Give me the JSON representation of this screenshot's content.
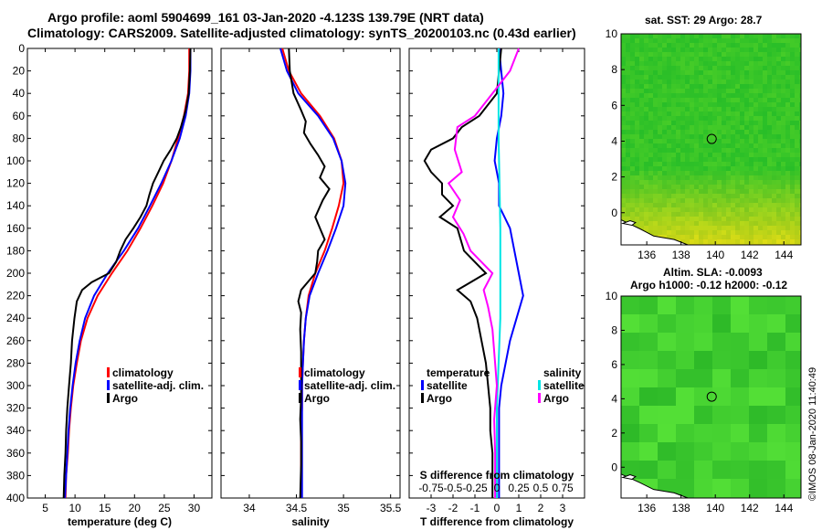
{
  "header": {
    "line1": "Argo profile: aoml 5904699_161 03-Jan-2020 -4.123S 139.79E (NRT data)",
    "line2": "Climatology: CARS2009. Satellite-adjusted climatology: synTS_20200103.nc (0.43d earlier)"
  },
  "watermark": "©IMOS 08-Jan-2020 11:40:49",
  "colors": {
    "argo": "#000000",
    "climatology": "#ff0000",
    "satellite_adj": "#0000ff",
    "salinity_satellite": "#00e5e5",
    "salinity_argo": "#ff00ff"
  },
  "chart_data": [
    {
      "id": "temperature",
      "type": "line",
      "xlabel": "temperature (deg C)",
      "ylabel": "depth",
      "xlim": [
        2,
        33
      ],
      "ylim": [
        400,
        0
      ],
      "xticks": [
        5,
        10,
        15,
        20,
        25,
        30
      ],
      "yticks": [
        0,
        20,
        40,
        60,
        80,
        100,
        120,
        140,
        160,
        180,
        200,
        220,
        240,
        260,
        280,
        300,
        320,
        340,
        360,
        380,
        400
      ],
      "legend": [
        "climatology",
        "satellite-adj. clim.",
        "Argo"
      ],
      "series": [
        {
          "name": "climatology",
          "color": "#ff0000",
          "points": [
            [
              29.2,
              0
            ],
            [
              29.2,
              20
            ],
            [
              29.0,
              40
            ],
            [
              28.3,
              60
            ],
            [
              27.3,
              80
            ],
            [
              26.2,
              100
            ],
            [
              24.8,
              120
            ],
            [
              23.0,
              140
            ],
            [
              21.0,
              160
            ],
            [
              18.8,
              180
            ],
            [
              16.2,
              200
            ],
            [
              13.8,
              220
            ],
            [
              12.1,
              240
            ],
            [
              11.0,
              260
            ],
            [
              10.3,
              280
            ],
            [
              9.7,
              300
            ],
            [
              9.3,
              320
            ],
            [
              9.0,
              340
            ],
            [
              8.8,
              360
            ],
            [
              8.5,
              380
            ],
            [
              8.4,
              400
            ]
          ]
        },
        {
          "name": "satellite-adj. clim.",
          "color": "#0000ff",
          "points": [
            [
              29.4,
              0
            ],
            [
              29.4,
              20
            ],
            [
              29.2,
              40
            ],
            [
              28.6,
              60
            ],
            [
              27.6,
              80
            ],
            [
              26.2,
              100
            ],
            [
              24.5,
              120
            ],
            [
              22.6,
              140
            ],
            [
              20.6,
              160
            ],
            [
              18.2,
              180
            ],
            [
              15.5,
              200
            ],
            [
              13.2,
              220
            ],
            [
              11.7,
              240
            ],
            [
              10.8,
              260
            ],
            [
              10.1,
              280
            ],
            [
              9.6,
              300
            ],
            [
              9.2,
              320
            ],
            [
              8.9,
              340
            ],
            [
              8.7,
              360
            ],
            [
              8.5,
              380
            ],
            [
              8.3,
              400
            ]
          ]
        },
        {
          "name": "Argo",
          "color": "#000000",
          "points": [
            [
              29.4,
              0
            ],
            [
              29.3,
              20
            ],
            [
              29.1,
              40
            ],
            [
              28.6,
              55
            ],
            [
              27.8,
              70
            ],
            [
              27.1,
              80
            ],
            [
              26.1,
              90
            ],
            [
              24.9,
              100
            ],
            [
              24.0,
              110
            ],
            [
              23.1,
              120
            ],
            [
              22.5,
              130
            ],
            [
              22.0,
              140
            ],
            [
              21.0,
              150
            ],
            [
              19.8,
              160
            ],
            [
              18.5,
              170
            ],
            [
              17.6,
              180
            ],
            [
              16.9,
              190
            ],
            [
              15.7,
              200
            ],
            [
              12.8,
              208
            ],
            [
              11.2,
              215
            ],
            [
              10.3,
              225
            ],
            [
              9.9,
              240
            ],
            [
              9.5,
              260
            ],
            [
              9.3,
              280
            ],
            [
              9.0,
              300
            ],
            [
              8.7,
              320
            ],
            [
              8.5,
              340
            ],
            [
              8.4,
              360
            ],
            [
              8.2,
              380
            ],
            [
              8.1,
              400
            ]
          ]
        }
      ]
    },
    {
      "id": "salinity",
      "type": "line",
      "xlabel": "salinity",
      "ylabel": "depth",
      "xlim": [
        33.7,
        35.6
      ],
      "ylim": [
        400,
        0
      ],
      "xticks": [
        34,
        34.5,
        35,
        35.5
      ],
      "legend": [
        "climatology",
        "satellite-adj. clim.",
        "Argo"
      ],
      "series": [
        {
          "name": "climatology",
          "color": "#ff0000",
          "points": [
            [
              34.35,
              0
            ],
            [
              34.42,
              20
            ],
            [
              34.55,
              40
            ],
            [
              34.75,
              60
            ],
            [
              34.9,
              80
            ],
            [
              34.98,
              100
            ],
            [
              35.0,
              120
            ],
            [
              34.95,
              140
            ],
            [
              34.88,
              160
            ],
            [
              34.8,
              180
            ],
            [
              34.7,
              200
            ],
            [
              34.63,
              220
            ],
            [
              34.6,
              240
            ],
            [
              34.58,
              260
            ],
            [
              34.57,
              280
            ],
            [
              34.56,
              300
            ],
            [
              34.56,
              320
            ],
            [
              34.55,
              340
            ],
            [
              34.55,
              360
            ],
            [
              34.55,
              380
            ],
            [
              34.55,
              400
            ]
          ]
        },
        {
          "name": "satellite-adj. clim.",
          "color": "#0000ff",
          "points": [
            [
              34.33,
              0
            ],
            [
              34.4,
              20
            ],
            [
              34.52,
              40
            ],
            [
              34.73,
              60
            ],
            [
              34.89,
              80
            ],
            [
              34.98,
              100
            ],
            [
              35.02,
              120
            ],
            [
              35.0,
              140
            ],
            [
              34.92,
              160
            ],
            [
              34.83,
              180
            ],
            [
              34.73,
              200
            ],
            [
              34.64,
              220
            ],
            [
              34.6,
              240
            ],
            [
              34.58,
              260
            ],
            [
              34.57,
              280
            ],
            [
              34.56,
              300
            ],
            [
              34.56,
              320
            ],
            [
              34.56,
              340
            ],
            [
              34.56,
              360
            ],
            [
              34.56,
              380
            ],
            [
              34.56,
              400
            ]
          ]
        },
        {
          "name": "Argo",
          "color": "#000000",
          "points": [
            [
              34.42,
              0
            ],
            [
              34.43,
              20
            ],
            [
              34.47,
              40
            ],
            [
              34.55,
              55
            ],
            [
              34.6,
              65
            ],
            [
              34.58,
              75
            ],
            [
              34.65,
              85
            ],
            [
              34.73,
              95
            ],
            [
              34.8,
              105
            ],
            [
              34.75,
              115
            ],
            [
              34.85,
              125
            ],
            [
              34.78,
              135
            ],
            [
              34.7,
              150
            ],
            [
              34.75,
              160
            ],
            [
              34.8,
              170
            ],
            [
              34.73,
              180
            ],
            [
              34.72,
              190
            ],
            [
              34.7,
              200
            ],
            [
              34.55,
              215
            ],
            [
              34.52,
              225
            ],
            [
              34.55,
              235
            ],
            [
              34.54,
              250
            ],
            [
              34.55,
              270
            ],
            [
              34.55,
              290
            ],
            [
              34.55,
              310
            ],
            [
              34.54,
              330
            ],
            [
              34.55,
              350
            ],
            [
              34.55,
              370
            ],
            [
              34.54,
              400
            ]
          ]
        }
      ]
    },
    {
      "id": "difference",
      "type": "line",
      "xlabel": "T difference from climatology",
      "x2label": "S difference from climatology",
      "ylabel": "depth",
      "xlim": [
        -4,
        4
      ],
      "ylim": [
        400,
        0
      ],
      "xticks": [
        -3,
        -2,
        -1,
        0,
        1,
        2,
        3
      ],
      "x2lim": [
        -1,
        1
      ],
      "x2ticks": [
        -0.75,
        -0.5,
        -0.25,
        0,
        0.25,
        0.5,
        0.75
      ],
      "legend_temperature": [
        "temperature",
        "satellite",
        "Argo"
      ],
      "legend_salinity": [
        "salinity",
        "satellite",
        "Argo"
      ],
      "series": [
        {
          "name": "T satellite",
          "axis": "T",
          "color": "#0000ff",
          "points": [
            [
              0.1,
              0
            ],
            [
              0.2,
              20
            ],
            [
              0.3,
              40
            ],
            [
              0.2,
              60
            ],
            [
              0.0,
              80
            ],
            [
              -0.1,
              100
            ],
            [
              0.1,
              120
            ],
            [
              0.1,
              140
            ],
            [
              0.6,
              160
            ],
            [
              0.8,
              180
            ],
            [
              1.0,
              200
            ],
            [
              1.2,
              220
            ],
            [
              0.9,
              240
            ],
            [
              0.6,
              260
            ],
            [
              0.4,
              280
            ],
            [
              0.2,
              300
            ],
            [
              0.1,
              320
            ],
            [
              0.1,
              340
            ],
            [
              0.1,
              360
            ],
            [
              0.1,
              380
            ],
            [
              0.1,
              400
            ]
          ]
        },
        {
          "name": "T Argo",
          "axis": "T",
          "color": "#000000",
          "points": [
            [
              0.2,
              0
            ],
            [
              0.1,
              20
            ],
            [
              0.0,
              40
            ],
            [
              -0.8,
              60
            ],
            [
              -1.6,
              70
            ],
            [
              -2.0,
              80
            ],
            [
              -3.0,
              90
            ],
            [
              -3.3,
              100
            ],
            [
              -3.0,
              110
            ],
            [
              -2.5,
              120
            ],
            [
              -2.5,
              130
            ],
            [
              -2.0,
              140
            ],
            [
              -2.6,
              150
            ],
            [
              -1.8,
              160
            ],
            [
              -1.5,
              180
            ],
            [
              -0.5,
              200
            ],
            [
              -1.8,
              215
            ],
            [
              -1.2,
              225
            ],
            [
              -0.9,
              240
            ],
            [
              -0.7,
              260
            ],
            [
              -0.5,
              280
            ],
            [
              -0.4,
              300
            ],
            [
              -0.3,
              320
            ],
            [
              -0.3,
              340
            ],
            [
              -0.2,
              360
            ],
            [
              -0.2,
              380
            ],
            [
              -0.2,
              400
            ]
          ]
        },
        {
          "name": "S satellite",
          "axis": "S",
          "color": "#00e5e5",
          "points": [
            [
              0.02,
              0
            ],
            [
              0.02,
              40
            ],
            [
              0.02,
              80
            ],
            [
              0.03,
              120
            ],
            [
              0.04,
              160
            ],
            [
              0.04,
              200
            ],
            [
              0.04,
              240
            ],
            [
              0.02,
              280
            ],
            [
              0.0,
              320
            ],
            [
              0.0,
              360
            ],
            [
              0.0,
              400
            ]
          ]
        },
        {
          "name": "S Argo",
          "axis": "S",
          "color": "#ff00ff",
          "points": [
            [
              0.25,
              0
            ],
            [
              0.15,
              20
            ],
            [
              -0.05,
              40
            ],
            [
              -0.25,
              60
            ],
            [
              -0.45,
              70
            ],
            [
              -0.48,
              90
            ],
            [
              -0.4,
              110
            ],
            [
              -0.55,
              120
            ],
            [
              -0.42,
              135
            ],
            [
              -0.5,
              150
            ],
            [
              -0.38,
              165
            ],
            [
              -0.3,
              180
            ],
            [
              -0.05,
              200
            ],
            [
              -0.15,
              215
            ],
            [
              -0.1,
              230
            ],
            [
              -0.05,
              250
            ],
            [
              -0.02,
              280
            ],
            [
              0.0,
              300
            ],
            [
              -0.03,
              330
            ],
            [
              -0.02,
              360
            ],
            [
              -0.02,
              400
            ]
          ]
        }
      ]
    },
    {
      "id": "sst_map",
      "type": "heatmap",
      "title": "sat. SST: 29 Argo: 28.7",
      "xlim": [
        134.5,
        145
      ],
      "ylim": [
        -1.8,
        10
      ],
      "xticks": [
        136,
        138,
        140,
        142,
        144
      ],
      "yticks": [
        0,
        2,
        4,
        6,
        8,
        10
      ],
      "marker": [
        139.79,
        4.123
      ]
    },
    {
      "id": "sla_map",
      "type": "heatmap",
      "title": "Altim. SLA: -0.0093",
      "subtitle": "Argo h1000: -0.12 h2000: -0.12",
      "xlim": [
        134.5,
        145
      ],
      "ylim": [
        -1.8,
        10
      ],
      "xticks": [
        136,
        138,
        140,
        142,
        144
      ],
      "yticks": [
        0,
        2,
        4,
        6,
        8,
        10
      ],
      "marker": [
        139.79,
        4.123
      ]
    }
  ]
}
